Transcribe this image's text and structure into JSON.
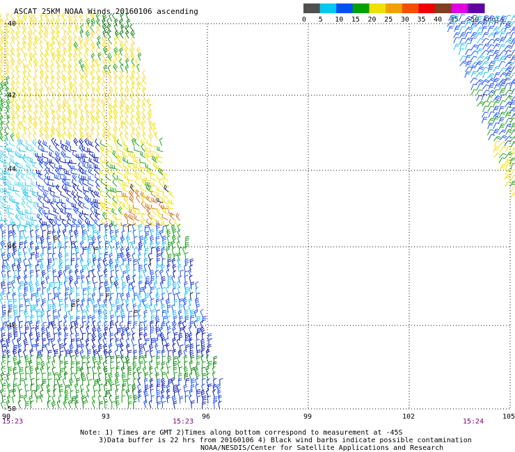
{
  "title": "ASCAT 25KM NOAA Winds 20160106 ascending",
  "legend": {
    "labels": [
      "0",
      "5",
      "10",
      "15",
      "20",
      "25",
      "30",
      "35",
      "40",
      "45",
      ">50 knots"
    ],
    "colors": [
      "#505050",
      "#00c8f0",
      "#0050f0",
      "#00a000",
      "#f0e000",
      "#f0a000",
      "#f05000",
      "#f00000",
      "#804020",
      "#e000e0",
      "#6000a0"
    ]
  },
  "map": {
    "lat_labels": [
      "-40",
      "-42",
      "-44",
      "-46",
      "-48",
      "-50"
    ],
    "lon_labels": [
      "90",
      "93",
      "96",
      "99",
      "102",
      "105"
    ],
    "time_labels": [
      "15:23",
      "15:23",
      "15:24"
    ]
  },
  "notes": {
    "line1": "Note: 1) Times are GMT 2)Times along bottom correspond to measurement at -45S",
    "line2": "3)Data buffer is 22 hrs from 20160106 4) Black wind barbs indicate possible contamination",
    "line3": "NOAA/NESDIS/Center for Satellite Applications and Research"
  }
}
